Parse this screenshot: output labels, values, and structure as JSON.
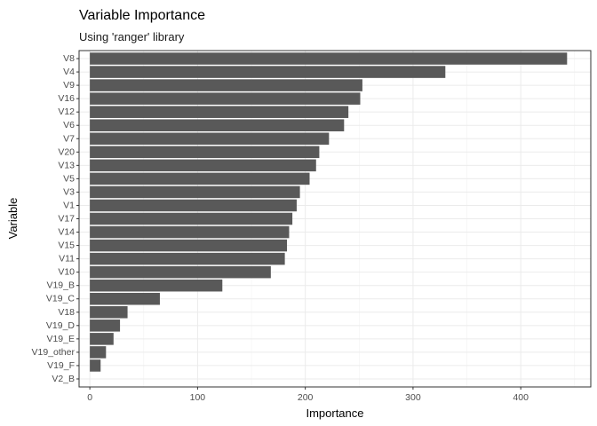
{
  "chart_data": {
    "type": "bar",
    "orientation": "horizontal",
    "title": "Variable Importance",
    "subtitle": "Using 'ranger' library",
    "xlabel": "Importance",
    "ylabel": "Variable",
    "xlim": [
      -10,
      465
    ],
    "xticks": [
      0,
      100,
      200,
      300,
      400
    ],
    "grid": true,
    "legend": "none",
    "bar_color": "#595959",
    "categories": [
      "V8",
      "V4",
      "V9",
      "V16",
      "V12",
      "V6",
      "V7",
      "V20",
      "V13",
      "V5",
      "V3",
      "V1",
      "V17",
      "V14",
      "V15",
      "V11",
      "V10",
      "V19_B",
      "V19_C",
      "V18",
      "V19_D",
      "V19_E",
      "V19_other",
      "V19_F",
      "V2_B"
    ],
    "values": [
      443,
      330,
      253,
      251,
      240,
      236,
      222,
      213,
      210,
      204,
      195,
      192,
      188,
      185,
      183,
      181,
      168,
      123,
      65,
      35,
      28,
      22,
      15,
      10,
      0
    ]
  }
}
